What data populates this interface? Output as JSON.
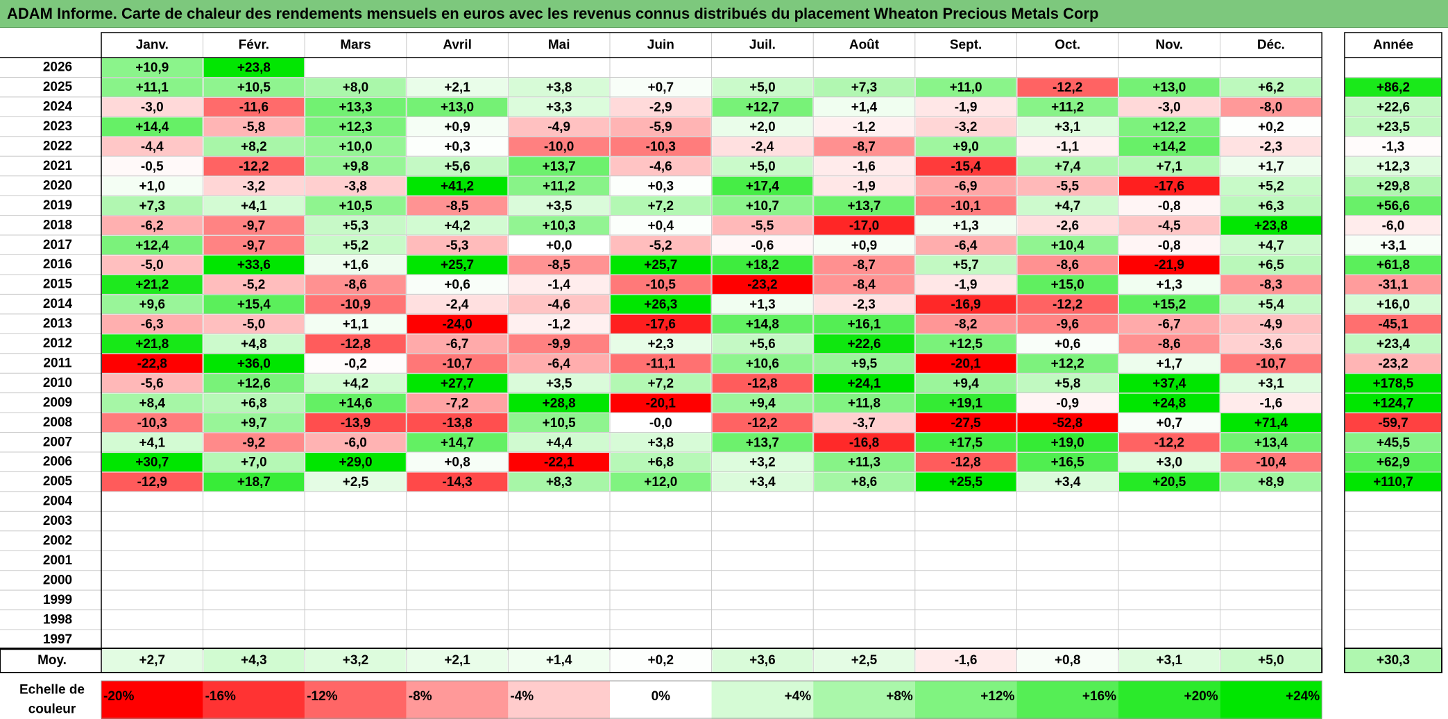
{
  "title": "ADAM Informe. Carte de chaleur des rendements mensuels en euros avec les revenus connus distribués du placement Wheaton Precious Metals Corp",
  "chart_data": {
    "type": "heatmap",
    "title": "ADAM Informe. Carte de chaleur des rendements mensuels en euros avec les revenus connus distribués du placement Wheaton Precious Metals Corp",
    "months": [
      "Janv.",
      "Févr.",
      "Mars",
      "Avril",
      "Mai",
      "Juin",
      "Juil.",
      "Août",
      "Sept.",
      "Oct.",
      "Nov.",
      "Déc."
    ],
    "year_header": "Année",
    "rows": [
      {
        "year": "2026",
        "values": [
          "+10,9",
          "+23,8",
          "",
          "",
          "",
          "",
          "",
          "",
          "",
          "",
          "",
          ""
        ],
        "annual": ""
      },
      {
        "year": "2025",
        "values": [
          "+11,1",
          "+10,5",
          "+8,0",
          "+2,1",
          "+3,8",
          "+0,7",
          "+5,0",
          "+7,3",
          "+11,0",
          "-12,2",
          "+13,0",
          "+6,2"
        ],
        "annual": "+86,2"
      },
      {
        "year": "2024",
        "values": [
          "-3,0",
          "-11,6",
          "+13,3",
          "+13,0",
          "+3,3",
          "-2,9",
          "+12,7",
          "+1,4",
          "-1,9",
          "+11,2",
          "-3,0",
          "-8,0"
        ],
        "annual": "+22,6"
      },
      {
        "year": "2023",
        "values": [
          "+14,4",
          "-5,8",
          "+12,3",
          "+0,9",
          "-4,9",
          "-5,9",
          "+2,0",
          "-1,2",
          "-3,2",
          "+3,1",
          "+12,2",
          "+0,2"
        ],
        "annual": "+23,5"
      },
      {
        "year": "2022",
        "values": [
          "-4,4",
          "+8,2",
          "+10,0",
          "+0,3",
          "-10,0",
          "-10,3",
          "-2,4",
          "-8,7",
          "+9,0",
          "-1,1",
          "+14,2",
          "-2,3"
        ],
        "annual": "-1,3"
      },
      {
        "year": "2021",
        "values": [
          "-0,5",
          "-12,2",
          "+9,8",
          "+5,6",
          "+13,7",
          "-4,6",
          "+5,0",
          "-1,6",
          "-15,4",
          "+7,4",
          "+7,1",
          "+1,7"
        ],
        "annual": "+12,3"
      },
      {
        "year": "2020",
        "values": [
          "+1,0",
          "-3,2",
          "-3,8",
          "+41,2",
          "+11,2",
          "+0,3",
          "+17,4",
          "-1,9",
          "-6,9",
          "-5,5",
          "-17,6",
          "+5,2"
        ],
        "annual": "+29,8"
      },
      {
        "year": "2019",
        "values": [
          "+7,3",
          "+4,1",
          "+10,5",
          "-8,5",
          "+3,5",
          "+7,2",
          "+10,7",
          "+13,7",
          "-10,1",
          "+4,7",
          "-0,8",
          "+6,3"
        ],
        "annual": "+56,6"
      },
      {
        "year": "2018",
        "values": [
          "-6,2",
          "-9,7",
          "+5,3",
          "+4,2",
          "+10,3",
          "+0,4",
          "-5,5",
          "-17,0",
          "+1,3",
          "-2,6",
          "-4,5",
          "+23,8"
        ],
        "annual": "-6,0"
      },
      {
        "year": "2017",
        "values": [
          "+12,4",
          "-9,7",
          "+5,2",
          "-5,3",
          "+0,0",
          "-5,2",
          "-0,6",
          "+0,9",
          "-6,4",
          "+10,4",
          "-0,8",
          "+4,7"
        ],
        "annual": "+3,1"
      },
      {
        "year": "2016",
        "values": [
          "-5,0",
          "+33,6",
          "+1,6",
          "+25,7",
          "-8,5",
          "+25,7",
          "+18,2",
          "-8,7",
          "+5,7",
          "-8,6",
          "-21,9",
          "+6,5"
        ],
        "annual": "+61,8"
      },
      {
        "year": "2015",
        "values": [
          "+21,2",
          "-5,2",
          "-8,6",
          "+0,6",
          "-1,4",
          "-10,5",
          "-23,2",
          "-8,4",
          "-1,9",
          "+15,0",
          "+1,3",
          "-8,3"
        ],
        "annual": "-31,1"
      },
      {
        "year": "2014",
        "values": [
          "+9,6",
          "+15,4",
          "-10,9",
          "-2,4",
          "-4,6",
          "+26,3",
          "+1,3",
          "-2,3",
          "-16,9",
          "-12,2",
          "+15,2",
          "+5,4"
        ],
        "annual": "+16,0"
      },
      {
        "year": "2013",
        "values": [
          "-6,3",
          "-5,0",
          "+1,1",
          "-24,0",
          "-1,2",
          "-17,6",
          "+14,8",
          "+16,1",
          "-8,2",
          "-9,6",
          "-6,7",
          "-4,9"
        ],
        "annual": "-45,1"
      },
      {
        "year": "2012",
        "values": [
          "+21,8",
          "+4,8",
          "-12,8",
          "-6,7",
          "-9,9",
          "+2,3",
          "+5,6",
          "+22,6",
          "+12,5",
          "+0,6",
          "-8,6",
          "-3,6"
        ],
        "annual": "+23,4"
      },
      {
        "year": "2011",
        "values": [
          "-22,8",
          "+36,0",
          "-0,2",
          "-10,7",
          "-6,4",
          "-11,1",
          "+10,6",
          "+9,5",
          "-20,1",
          "+12,2",
          "+1,7",
          "-10,7"
        ],
        "annual": "-23,2"
      },
      {
        "year": "2010",
        "values": [
          "-5,6",
          "+12,6",
          "+4,2",
          "+27,7",
          "+3,5",
          "+7,2",
          "-12,8",
          "+24,1",
          "+9,4",
          "+5,8",
          "+37,4",
          "+3,1"
        ],
        "annual": "+178,5"
      },
      {
        "year": "2009",
        "values": [
          "+8,4",
          "+6,8",
          "+14,6",
          "-7,2",
          "+28,8",
          "-20,1",
          "+9,4",
          "+11,8",
          "+19,1",
          "-0,9",
          "+24,8",
          "-1,6"
        ],
        "annual": "+124,7"
      },
      {
        "year": "2008",
        "values": [
          "-10,3",
          "+9,7",
          "-13,9",
          "-13,8",
          "+10,5",
          "-0,0",
          "-12,2",
          "-3,7",
          "-27,5",
          "-52,8",
          "+0,7",
          "+71,4"
        ],
        "annual": "-59,7"
      },
      {
        "year": "2007",
        "values": [
          "+4,1",
          "-9,2",
          "-6,0",
          "+14,7",
          "+4,4",
          "+3,8",
          "+13,7",
          "-16,8",
          "+17,5",
          "+19,0",
          "-12,2",
          "+13,4"
        ],
        "annual": "+45,5"
      },
      {
        "year": "2006",
        "values": [
          "+30,7",
          "+7,0",
          "+29,0",
          "+0,8",
          "-22,1",
          "+6,8",
          "+3,2",
          "+11,3",
          "-12,8",
          "+16,5",
          "+3,0",
          "-10,4"
        ],
        "annual": "+62,9"
      },
      {
        "year": "2005",
        "values": [
          "-12,9",
          "+18,7",
          "+2,5",
          "-14,3",
          "+8,3",
          "+12,0",
          "+3,4",
          "+8,6",
          "+25,5",
          "+3,4",
          "+20,5",
          "+8,9"
        ],
        "annual": "+110,7"
      },
      {
        "year": "2004",
        "values": [
          "",
          "",
          "",
          "",
          "",
          "",
          "",
          "",
          "",
          "",
          "",
          ""
        ],
        "annual": ""
      },
      {
        "year": "2003",
        "values": [
          "",
          "",
          "",
          "",
          "",
          "",
          "",
          "",
          "",
          "",
          "",
          ""
        ],
        "annual": ""
      },
      {
        "year": "2002",
        "values": [
          "",
          "",
          "",
          "",
          "",
          "",
          "",
          "",
          "",
          "",
          "",
          ""
        ],
        "annual": ""
      },
      {
        "year": "2001",
        "values": [
          "",
          "",
          "",
          "",
          "",
          "",
          "",
          "",
          "",
          "",
          "",
          ""
        ],
        "annual": ""
      },
      {
        "year": "2000",
        "values": [
          "",
          "",
          "",
          "",
          "",
          "",
          "",
          "",
          "",
          "",
          "",
          ""
        ],
        "annual": ""
      },
      {
        "year": "1999",
        "values": [
          "",
          "",
          "",
          "",
          "",
          "",
          "",
          "",
          "",
          "",
          "",
          ""
        ],
        "annual": ""
      },
      {
        "year": "1998",
        "values": [
          "",
          "",
          "",
          "",
          "",
          "",
          "",
          "",
          "",
          "",
          "",
          ""
        ],
        "annual": ""
      },
      {
        "year": "1997",
        "values": [
          "",
          "",
          "",
          "",
          "",
          "",
          "",
          "",
          "",
          "",
          "",
          ""
        ],
        "annual": ""
      }
    ],
    "average": {
      "label": "Moy.",
      "values": [
        "+2,7",
        "+4,3",
        "+3,2",
        "+2,1",
        "+1,4",
        "+0,2",
        "+3,6",
        "+2,5",
        "-1,6",
        "+0,8",
        "+3,1",
        "+5,0"
      ],
      "annual": "+30,3"
    },
    "color_scale": {
      "label_line1": "Echelle de",
      "label_line2": "couleur",
      "stops": [
        {
          "label": "-20%",
          "value": -20
        },
        {
          "label": "-16%",
          "value": -16
        },
        {
          "label": "-12%",
          "value": -12
        },
        {
          "label": "-8%",
          "value": -8
        },
        {
          "label": "-4%",
          "value": -4
        },
        {
          "label": "0%",
          "value": 0
        },
        {
          "label": "+4%",
          "value": 4
        },
        {
          "label": "+8%",
          "value": 8
        },
        {
          "label": "+12%",
          "value": 12
        },
        {
          "label": "+16%",
          "value": 16
        },
        {
          "label": "+20%",
          "value": 20
        },
        {
          "label": "+24%",
          "value": 24
        }
      ]
    },
    "colors": {
      "negative_max": "#ff0000",
      "neutral": "#ffffff",
      "positive_max": "#00e600",
      "title_bar": "#7dc87d"
    }
  }
}
